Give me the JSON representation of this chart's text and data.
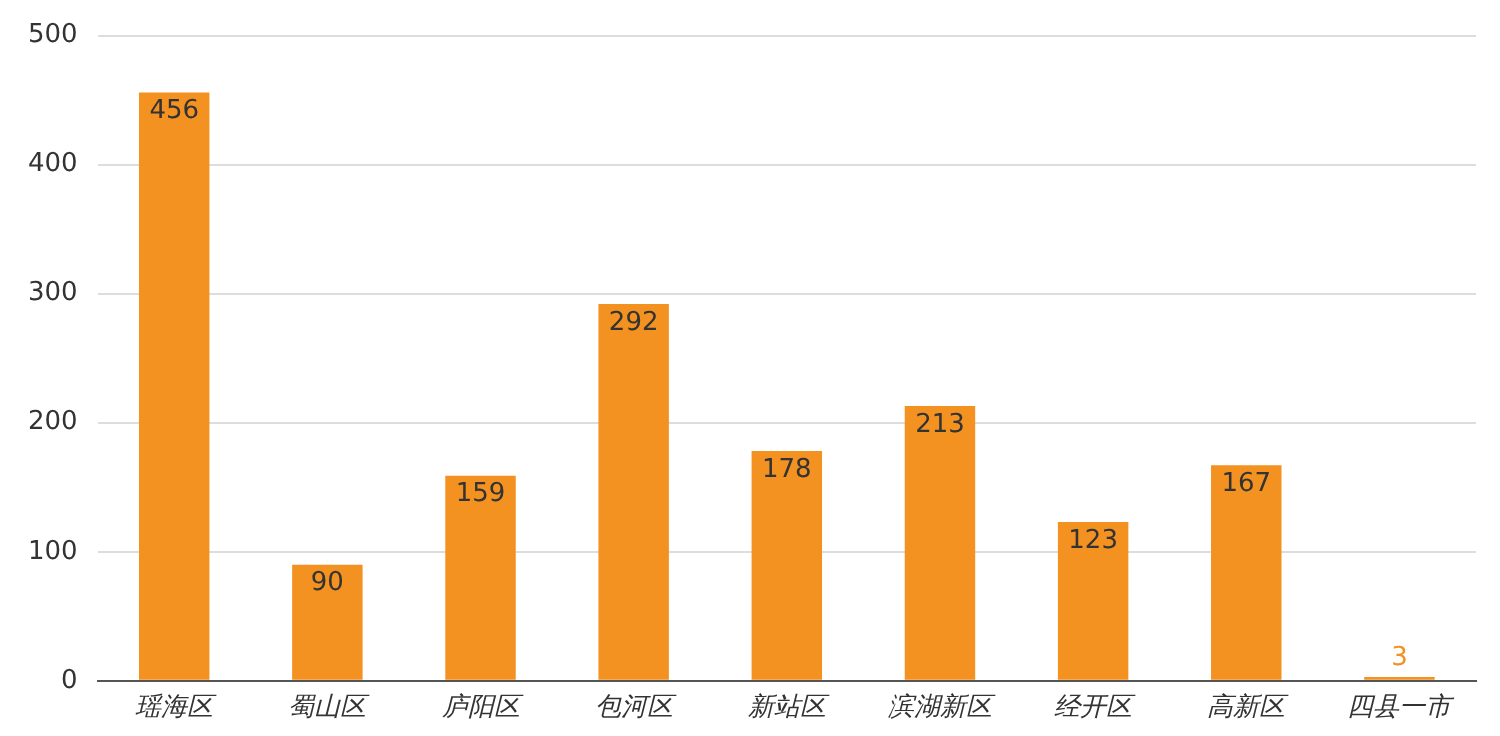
{
  "chart_data": {
    "type": "bar",
    "categories": [
      "瑶海区",
      "蜀山区",
      "庐阳区",
      "包河区",
      "新站区",
      "滨湖新区",
      "经开区",
      "高新区",
      "四县一市"
    ],
    "values": [
      456,
      90,
      159,
      292,
      178,
      213,
      123,
      167,
      3
    ],
    "color": "#f39121",
    "ylim": [
      0,
      500
    ],
    "yticks": [
      0,
      100,
      200,
      300,
      400,
      500
    ],
    "grid": "y",
    "data_labels": true
  }
}
